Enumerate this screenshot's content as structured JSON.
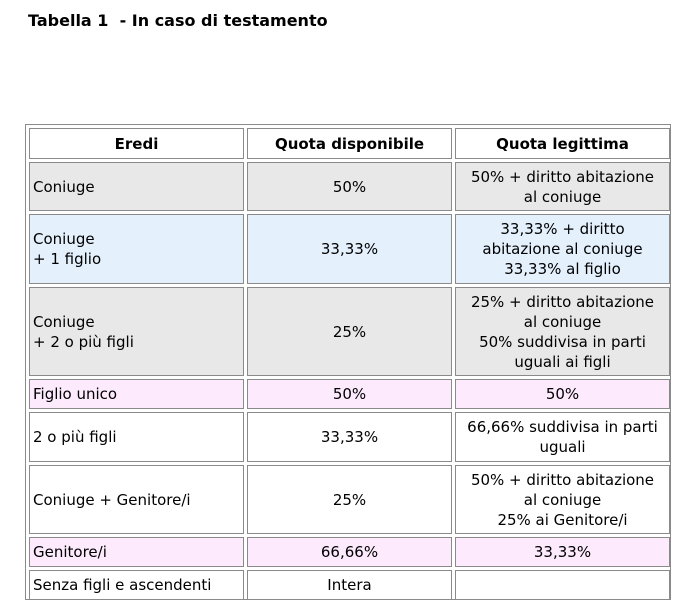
{
  "title": "Tabella 1  - In caso di testamento",
  "headers": [
    "Eredi",
    "Quota disponibile",
    "Quota legittima"
  ],
  "rows": [
    {
      "heirs": [
        "Coniuge"
      ],
      "available": "50%",
      "legitimate": [
        "50% + diritto abitazione",
        "al coniuge"
      ],
      "color": "#e8e8e8"
    },
    {
      "heirs": [
        "Coniuge",
        "+ 1 figlio"
      ],
      "available": "33,33%",
      "legitimate": [
        "33,33% + diritto",
        "abitazione al coniuge",
        "33,33% al figlio"
      ],
      "color": "#e4f1fd"
    },
    {
      "heirs": [
        "Coniuge",
        "+ 2 o più figli"
      ],
      "available": "25%",
      "legitimate": [
        "25% + diritto abitazione",
        "al coniuge",
        "50% suddivisa in parti",
        "uguali ai figli"
      ],
      "color": "#e8e8e8"
    },
    {
      "heirs": [
        "Figlio unico"
      ],
      "available": "50%",
      "legitimate": [
        "50%"
      ],
      "color": "#fdebfd"
    },
    {
      "heirs": [
        "2 o più figli"
      ],
      "available": "33,33%",
      "legitimate": [
        "66,66% suddivisa in parti",
        "uguali"
      ],
      "color": "#ffffff"
    },
    {
      "heirs": [
        "Coniuge + Genitore/i"
      ],
      "available": "25%",
      "legitimate": [
        "50% + diritto abitazione",
        "al coniuge",
        "25% ai Genitore/i"
      ],
      "color": "#ffffff"
    },
    {
      "heirs": [
        "Genitore/i"
      ],
      "available": "66,66%",
      "legitimate": [
        "33,33%"
      ],
      "color": "#fdebfd"
    },
    {
      "heirs": [
        "Senza figli e ascendenti"
      ],
      "available": "Intera",
      "legitimate": [
        ""
      ],
      "color": "#ffffff"
    }
  ]
}
